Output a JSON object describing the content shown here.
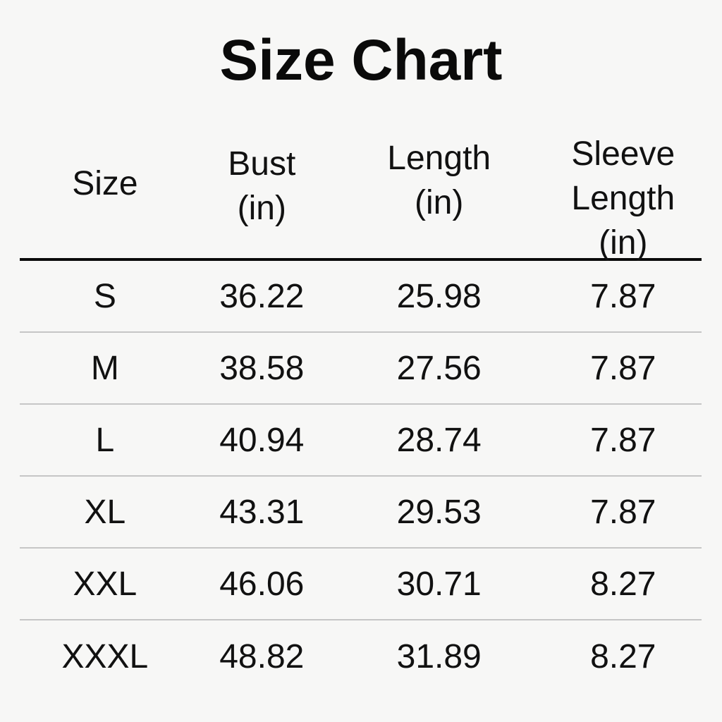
{
  "title": "Size Chart",
  "colors": {
    "background": "#f7f7f6",
    "text": "#111111",
    "header_divider": "#0a0a0a",
    "row_divider": "#c6c6c6"
  },
  "table": {
    "headers": [
      {
        "name": "size",
        "label": "Size"
      },
      {
        "name": "bust",
        "label": "Bust\n(in)"
      },
      {
        "name": "length",
        "label": "Length\n(in)"
      },
      {
        "name": "sleeve_length",
        "label": "Sleeve\nLength\n(in)"
      }
    ],
    "rows": [
      [
        "S",
        "36.22",
        "25.98",
        "7.87"
      ],
      [
        "M",
        "38.58",
        "27.56",
        "7.87"
      ],
      [
        "L",
        "40.94",
        "28.74",
        "7.87"
      ],
      [
        "XL",
        "43.31",
        "29.53",
        "7.87"
      ],
      [
        "XXL",
        "46.06",
        "30.71",
        "8.27"
      ],
      [
        "XXXL",
        "48.82",
        "31.89",
        "8.27"
      ]
    ]
  },
  "chart_data": {
    "type": "table",
    "title": "Size Chart",
    "columns": [
      "Size",
      "Bust (in)",
      "Length (in)",
      "Sleeve Length (in)"
    ],
    "rows": [
      [
        "S",
        36.22,
        25.98,
        7.87
      ],
      [
        "M",
        38.58,
        27.56,
        7.87
      ],
      [
        "L",
        40.94,
        28.74,
        7.87
      ],
      [
        "XL",
        43.31,
        29.53,
        7.87
      ],
      [
        "XXL",
        46.06,
        30.71,
        8.27
      ],
      [
        "XXXL",
        48.82,
        31.89,
        8.27
      ]
    ],
    "units": "inches",
    "notes": "Garment size chart; heavy black rule under header, light gray rules between rows"
  }
}
